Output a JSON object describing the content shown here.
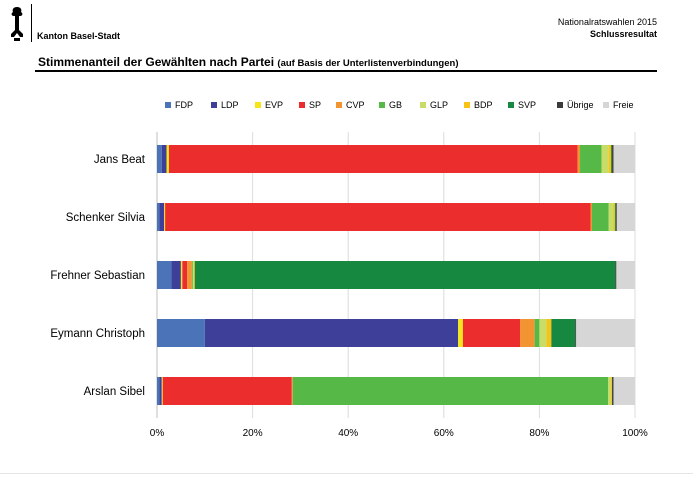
{
  "header": {
    "org": "Kanton Basel-Stadt",
    "report": "Nationalratswahlen 2015",
    "report_sub": "Schlussresultat",
    "title_main": "Stimmenanteil der Gewählten nach Partei",
    "title_paren": "(auf Basis der Unterlistenverbindungen)"
  },
  "colors": {
    "FDP": "#4a74b7",
    "LDP": "#3d3f98",
    "EVP": "#f7e51b",
    "SP": "#ec2d2d",
    "CVP": "#f39433",
    "GB": "#56b947",
    "GLP": "#c8dc68",
    "BDP": "#f9c217",
    "SVP": "#16883f",
    "Übrige": "#3b3b3b",
    "Freie": "#d6d6d6"
  },
  "chart_data": {
    "type": "bar",
    "orientation": "horizontal",
    "stacked": true,
    "legend_position": "top",
    "categories": [
      "Jans Beat",
      "Schenker Silvia",
      "Frehner Sebastian",
      "Eymann Christoph",
      "Arslan Sibel"
    ],
    "series": [
      {
        "name": "FDP",
        "values": [
          1.0,
          0.5,
          3.0,
          10.0,
          0.5
        ]
      },
      {
        "name": "LDP",
        "values": [
          1.0,
          1.0,
          2.0,
          53.0,
          0.5
        ]
      },
      {
        "name": "EVP",
        "values": [
          0.5,
          0.2,
          0.3,
          1.0,
          0.2
        ]
      },
      {
        "name": "SP",
        "values": [
          85.5,
          89.0,
          1.0,
          12.0,
          27.0
        ]
      },
      {
        "name": "CVP",
        "values": [
          0.5,
          0.3,
          1.0,
          3.0,
          0.2
        ]
      },
      {
        "name": "GB",
        "values": [
          4.5,
          3.5,
          0.2,
          1.0,
          66.0
        ]
      },
      {
        "name": "GLP",
        "values": [
          1.5,
          1.0,
          0.2,
          1.5,
          0.6
        ]
      },
      {
        "name": "BDP",
        "values": [
          0.5,
          0.3,
          0.2,
          1.0,
          0.2
        ]
      },
      {
        "name": "SVP",
        "values": [
          0.2,
          0.2,
          88.0,
          5.0,
          0.0
        ]
      },
      {
        "name": "Übrige",
        "values": [
          0.3,
          0.2,
          0.2,
          0.2,
          0.3
        ]
      },
      {
        "name": "Freie",
        "values": [
          4.5,
          3.8,
          3.9,
          12.3,
          4.5
        ]
      }
    ],
    "xlim": [
      0,
      100
    ],
    "x_ticks": [
      "0%",
      "20%",
      "40%",
      "60%",
      "80%",
      "100%"
    ],
    "grid": true
  }
}
